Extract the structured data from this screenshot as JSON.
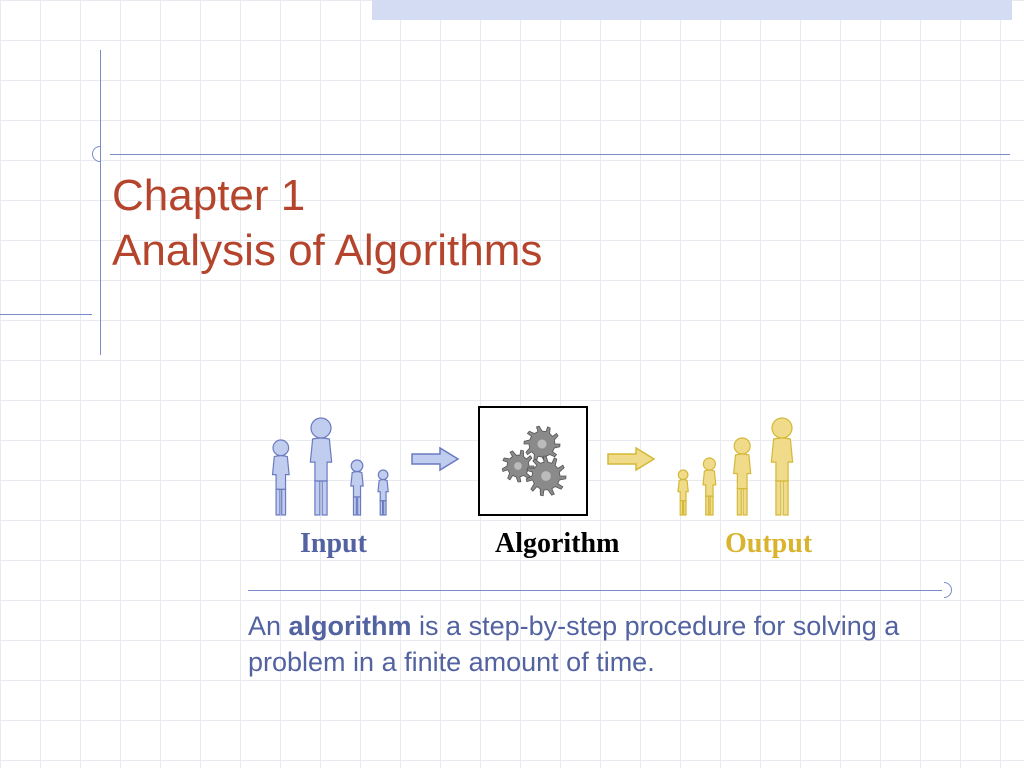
{
  "colors": {
    "title": "#b5442c",
    "input_label": "#5362a0",
    "algorithm_label": "#000000",
    "output_label": "#dab32f",
    "definition_text": "#5362a0",
    "person_input_fill": "#c0cdee",
    "person_input_stroke": "#6a7bc0",
    "person_output_fill": "#f0db8a",
    "person_output_stroke": "#d4b838",
    "arrow_input_fill": "#c0cdee",
    "arrow_input_stroke": "#6a7bc0",
    "arrow_output_fill": "#f0db8a",
    "arrow_output_stroke": "#d4b838",
    "gear_fill": "#8a8a8a",
    "rule_color": "#7a8bc9",
    "grid_color": "#e8eaf0",
    "top_bar": "#d4dcf4"
  },
  "title": {
    "line1": "Chapter 1",
    "line2": "Analysis of Algorithms",
    "fontsize": 44
  },
  "diagram": {
    "input_people_heights": [
      78,
      100,
      58,
      48
    ],
    "output_people_heights": [
      48,
      60,
      80,
      100
    ],
    "labels": {
      "input": "Input",
      "algorithm": "Algorithm",
      "output": "Output"
    },
    "label_fontsize": 28
  },
  "definition": {
    "prefix": "An ",
    "bold": "algorithm",
    "suffix": " is a step-by-step procedure for solving a problem in a finite amount of time.",
    "fontsize": 27
  }
}
